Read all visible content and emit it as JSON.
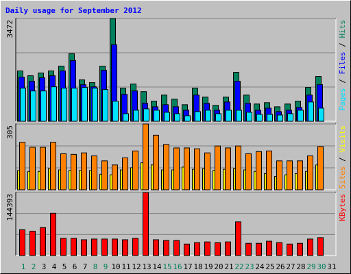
{
  "chart_data": [
    {
      "type": "bar",
      "title": "Daily usage for September 2012",
      "ylim": [
        0,
        3472
      ],
      "yticks": [
        3472
      ],
      "grid_divisions": 3,
      "series": [
        {
          "name": "Hits",
          "color": "#00805c",
          "values": [
            1701,
            1538,
            1631,
            1701,
            1864,
            2283,
            1398,
            1305,
            1864,
            3472,
            1118,
            1258,
            1002,
            676,
            885,
            746,
            559,
            1118,
            816,
            536,
            816,
            1654,
            885,
            583,
            629,
            489,
            583,
            676,
            1142,
            1515,
            0
          ]
        },
        {
          "name": "Files",
          "color": "#0000ff",
          "values": [
            1491,
            1351,
            1468,
            1538,
            1701,
            2050,
            1235,
            1165,
            1724,
            2586,
            909,
            1025,
            606,
            489,
            559,
            489,
            373,
            885,
            606,
            373,
            652,
            1351,
            606,
            373,
            443,
            326,
            373,
            466,
            885,
            1235,
            0
          ]
        },
        {
          "name": "Pages",
          "color": "#00e0ff",
          "values": [
            1118,
            1025,
            1025,
            1165,
            1118,
            1118,
            1142,
            1118,
            1072,
            676,
            256,
            373,
            419,
            373,
            303,
            256,
            186,
            326,
            373,
            256,
            373,
            373,
            303,
            233,
            233,
            210,
            256,
            373,
            652,
            443,
            0
          ]
        }
      ]
    },
    {
      "type": "bar",
      "ylim": [
        0,
        305
      ],
      "yticks": [
        305
      ],
      "grid_divisions": 3,
      "series": [
        {
          "name": "Visits",
          "color": "#ffff00",
          "values": [
            89,
            85,
            85,
            98,
            92,
            89,
            89,
            89,
            72,
            69,
            92,
            102,
            125,
            115,
            92,
            92,
            105,
            95,
            98,
            89,
            95,
            98,
            92,
            85,
            75,
            62,
            69,
            75,
            85,
            115,
            0
          ]
        },
        {
          "name": "Sites",
          "color": "#ff8000",
          "values": [
            220,
            197,
            197,
            220,
            167,
            164,
            171,
            157,
            134,
            115,
            148,
            180,
            305,
            253,
            210,
            194,
            194,
            190,
            171,
            203,
            194,
            203,
            167,
            177,
            180,
            134,
            134,
            134,
            157,
            200,
            0
          ]
        }
      ]
    },
    {
      "type": "bar",
      "ylim": [
        0,
        144393
      ],
      "yticks": [
        144393
      ],
      "grid_divisions": 3,
      "categories": [
        "1",
        "2",
        "3",
        "4",
        "5",
        "6",
        "7",
        "8",
        "9",
        "10",
        "11",
        "12",
        "13",
        "14",
        "15",
        "16",
        "17",
        "18",
        "19",
        "20",
        "21",
        "22",
        "23",
        "24",
        "25",
        "26",
        "27",
        "28",
        "29",
        "30",
        "31"
      ],
      "category_colors": [
        "#00805c",
        "#00805c",
        "#000000",
        "#000000",
        "#000000",
        "#000000",
        "#000000",
        "#00805c",
        "#00805c",
        "#000000",
        "#000000",
        "#000000",
        "#000000",
        "#000000",
        "#00805c",
        "#00805c",
        "#000000",
        "#000000",
        "#000000",
        "#000000",
        "#000000",
        "#00805c",
        "#00805c",
        "#000000",
        "#000000",
        "#000000",
        "#000000",
        "#000000",
        "#00805c",
        "#00805c",
        "#000000"
      ],
      "series": [
        {
          "name": "KBytes",
          "color": "#ff0000",
          "values": [
            59076,
            55794,
            63999,
            96819,
            39384,
            39384,
            36102,
            37743,
            37743,
            37743,
            36102,
            39384,
            144393,
            36102,
            34461,
            34461,
            26256,
            29538,
            31179,
            29538,
            31179,
            77127,
            27897,
            27897,
            32820,
            29538,
            26256,
            27897,
            37743,
            41025,
            0
          ]
        }
      ]
    }
  ]
}
